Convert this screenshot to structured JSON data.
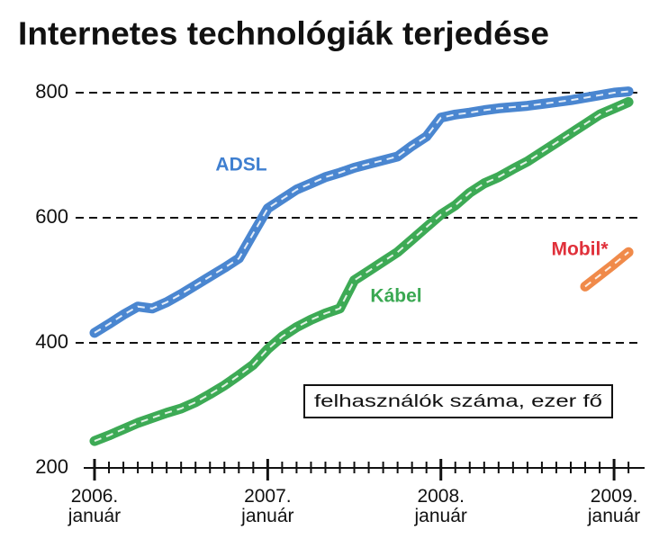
{
  "chart_data": {
    "type": "line",
    "title": "Internetes technológiák terjedése",
    "annotation": "felhasználók száma, ezer fő",
    "categories": [
      "2006. január",
      null,
      null,
      null,
      null,
      null,
      null,
      null,
      null,
      null,
      null,
      null,
      "2007. január",
      null,
      null,
      null,
      null,
      null,
      null,
      null,
      null,
      null,
      null,
      null,
      "2008. január",
      null,
      null,
      null,
      null,
      null,
      null,
      null,
      null,
      null,
      null,
      null,
      "2009. január",
      null
    ],
    "series": [
      {
        "name": "ADSL",
        "color": "#4a86d0",
        "label_color": "#3f7fd0",
        "values": [
          416,
          430,
          445,
          458,
          455,
          465,
          478,
          492,
          506,
          520,
          535,
          575,
          615,
          630,
          645,
          655,
          665,
          672,
          680,
          686,
          692,
          698,
          715,
          730,
          760,
          765,
          768,
          772,
          775,
          777,
          779,
          782,
          785,
          788,
          792,
          796,
          800,
          802
        ]
      },
      {
        "name": "Kábel",
        "color": "#3daa55",
        "label_color": "#3aa852",
        "values": [
          243,
          252,
          262,
          272,
          280,
          288,
          295,
          305,
          318,
          332,
          348,
          365,
          390,
          410,
          425,
          437,
          447,
          455,
          500,
          515,
          530,
          545,
          565,
          585,
          605,
          620,
          640,
          655,
          665,
          678,
          690,
          705,
          720,
          735,
          750,
          765,
          775,
          785
        ]
      },
      {
        "name": "Mobil*",
        "color": "#f08a4a",
        "label_color": "#e0303a",
        "values": [
          null,
          null,
          null,
          null,
          null,
          null,
          null,
          null,
          null,
          null,
          null,
          null,
          null,
          null,
          null,
          null,
          null,
          null,
          null,
          null,
          null,
          null,
          null,
          null,
          null,
          null,
          null,
          null,
          null,
          null,
          null,
          null,
          null,
          null,
          490,
          508,
          526,
          545
        ]
      }
    ],
    "ylim": [
      200,
      800
    ],
    "yticks": [
      200,
      400,
      600,
      800
    ],
    "grid": true
  }
}
